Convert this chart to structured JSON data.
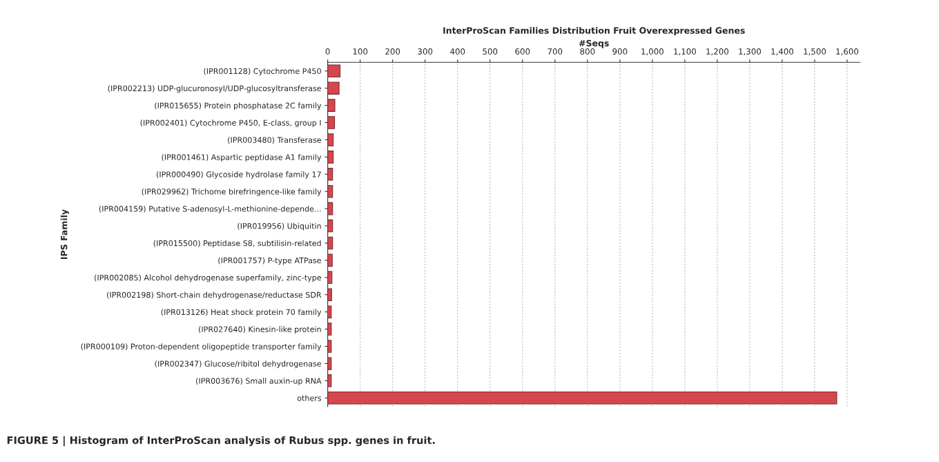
{
  "chart_data": {
    "type": "bar",
    "orientation": "horizontal",
    "title": "InterProScan Families Distribution Fruit Overexpressed Genes",
    "xlabel": "#Seqs",
    "ylabel": "IPS Family",
    "categories": [
      "(IPR001128) Cytochrome P450",
      "(IPR002213) UDP-glucuronosyl/UDP-glucosyltransferase",
      "(IPR015655) Protein phosphatase 2C family",
      "(IPR002401) Cytochrome P450, E-class, group I",
      "(IPR003480) Transferase",
      "(IPR001461) Aspartic peptidase A1 family",
      "(IPR000490) Glycoside hydrolase family 17",
      "(IPR029962) Trichome birefringence-like family",
      "(IPR004159) Putative S-adenosyl-L-methionine-depende...",
      "(IPR019956) Ubiquitin",
      "(IPR015500) Peptidase S8, subtilisin-related",
      "(IPR001757) P-type ATPase",
      "(IPR002085) Alcohol dehydrogenase superfamily, zinc-type",
      "(IPR002198) Short-chain dehydrogenase/reductase SDR",
      "(IPR013126) Heat shock protein 70 family",
      "(IPR027640) Kinesin-like protein",
      "(IPR000109) Proton-dependent oligopeptide transporter family",
      "(IPR002347) Glucose/ribitol dehydrogenase",
      "(IPR003676) Small auxin-up RNA",
      "others"
    ],
    "values": [
      38,
      35,
      22,
      21,
      17,
      17,
      15,
      15,
      15,
      15,
      15,
      14,
      13,
      12,
      11,
      11,
      11,
      11,
      11,
      1568
    ],
    "color": "#d5474f",
    "xlim": [
      0,
      1640
    ],
    "xticks": [
      0,
      100,
      200,
      300,
      400,
      500,
      600,
      700,
      800,
      900,
      {
        "value": 1000,
        "label": "1,000"
      },
      {
        "value": 1100,
        "label": "1,100"
      },
      {
        "value": 1200,
        "label": "1,200"
      },
      {
        "value": 1300,
        "label": "1,300"
      },
      {
        "value": 1400,
        "label": "1,400"
      },
      {
        "value": 1500,
        "label": "1,500"
      },
      {
        "value": 1600,
        "label": "1,600"
      }
    ],
    "grid": "x",
    "annotations": [
      "FIGURE 5 | Histogram of InterProScan analysis of Rubus spp. genes in fruit."
    ]
  }
}
